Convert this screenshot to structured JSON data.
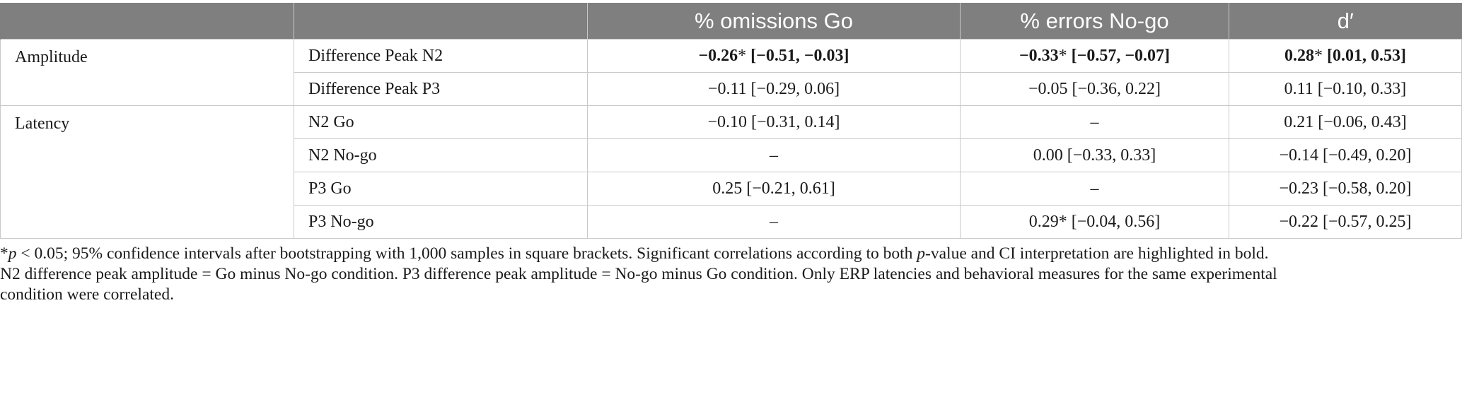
{
  "header": {
    "blank1": "",
    "blank2": "",
    "omissions": "% omissions Go",
    "errors": "% errors No-go",
    "dprime": "d′"
  },
  "rows": [
    {
      "group": "Amplitude",
      "measure": "Difference Peak N2",
      "omissions": "−0.26* [−0.51, −0.03]",
      "errors": "−0.33* [−0.57, −0.07]",
      "dprime": "0.28* [0.01, 0.53]"
    },
    {
      "group": "",
      "measure": "Difference Peak P3",
      "omissions": "−0.11 [−0.29, 0.06]",
      "errors": "−0.05 [−0.36, 0.22]",
      "dprime": "0.11 [−0.10, 0.33]"
    },
    {
      "group": "Latency",
      "measure": "N2 Go",
      "omissions": "−0.10 [−0.31, 0.14]",
      "errors": "–",
      "dprime": "0.21 [−0.06, 0.43]"
    },
    {
      "group": "",
      "measure": "N2 No-go",
      "omissions": "–",
      "errors": "0.00 [−0.33, 0.33]",
      "dprime": "−0.14 [−0.49, 0.20]"
    },
    {
      "group": "",
      "measure": "P3 Go",
      "omissions": "0.25 [−0.21, 0.61]",
      "errors": "–",
      "dprime": "−0.23 [−0.58, 0.20]"
    },
    {
      "group": "",
      "measure": "P3 No-go",
      "omissions": "–",
      "errors": "0.29* [−0.04, 0.56]",
      "dprime": "−0.22 [−0.57, 0.25]"
    }
  ],
  "note": {
    "star": "*",
    "p1": "p",
    "line1_a": " < 0.05; 95% confidence intervals after bootstrapping with 1,000 samples in square brackets. Significant correlations according to both ",
    "p2": "p",
    "line1_b": "-value and CI interpretation are highlighted in bold.",
    "line2": "N2 difference peak amplitude = Go minus No-go condition. P3 difference peak amplitude = No-go minus Go condition. Only ERP latencies and behavioral measures for the same experimental",
    "line3": "condition were correlated."
  }
}
